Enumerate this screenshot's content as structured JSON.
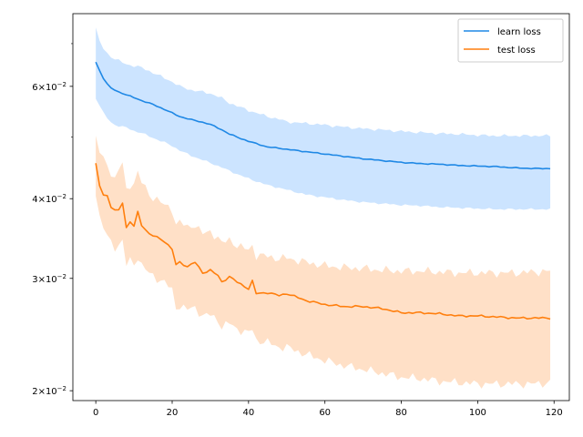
{
  "chart_data": {
    "type": "line",
    "title": "",
    "xlabel": "",
    "ylabel": "",
    "y_scale": "log",
    "xlim": [
      -6,
      124
    ],
    "ylim": [
      0.0193,
      0.078
    ],
    "grid": false,
    "legend_position": "top-right",
    "x_ticks": [
      0,
      20,
      40,
      60,
      80,
      100,
      120
    ],
    "x_tick_labels": [
      "0",
      "20",
      "40",
      "60",
      "80",
      "100",
      "120"
    ],
    "y_ticks": [
      0.02,
      0.03,
      0.04,
      0.06
    ],
    "y_tick_bases": [
      "2",
      "3",
      "4",
      "6"
    ],
    "y_tick_times": "×10",
    "y_tick_exponent": "−2",
    "y_minor_ticks": [
      0.05,
      0.07
    ],
    "series": [
      {
        "name": "learn loss",
        "color": "#1f88e5",
        "band_color": "#cce4ff",
        "keypoints": {
          "x": [
            0,
            1,
            2,
            3,
            4,
            5,
            6,
            8,
            10,
            12,
            15,
            18,
            20,
            22,
            25,
            28,
            30,
            33,
            35,
            38,
            40,
            43,
            45,
            48,
            50,
            55,
            60,
            65,
            70,
            75,
            80,
            85,
            90,
            95,
            100,
            105,
            110,
            115,
            119
          ],
          "mean": [
            0.0655,
            0.0635,
            0.0618,
            0.0605,
            0.0596,
            0.0592,
            0.0588,
            0.0582,
            0.0576,
            0.057,
            0.0562,
            0.0552,
            0.0545,
            0.0538,
            0.0532,
            0.0527,
            0.0523,
            0.0513,
            0.0505,
            0.0497,
            0.0492,
            0.0486,
            0.0482,
            0.048,
            0.0478,
            0.0474,
            0.047,
            0.0466,
            0.0462,
            0.0459,
            0.0456,
            0.0454,
            0.0453,
            0.0451,
            0.045,
            0.0449,
            0.0447,
            0.0446,
            0.0446
          ],
          "upper": [
            0.074,
            0.0705,
            0.0688,
            0.0676,
            0.0668,
            0.0662,
            0.0658,
            0.065,
            0.0646,
            0.0642,
            0.063,
            0.0618,
            0.061,
            0.06,
            0.0592,
            0.0588,
            0.0585,
            0.0575,
            0.0565,
            0.0556,
            0.055,
            0.0543,
            0.0538,
            0.0533,
            0.0528,
            0.0525,
            0.0522,
            0.0518,
            0.0515,
            0.0513,
            0.051,
            0.0508,
            0.0506,
            0.0505,
            0.0503,
            0.0502,
            0.0502,
            0.0502,
            0.0502
          ],
          "lower": [
            0.0575,
            0.056,
            0.0545,
            0.0535,
            0.0527,
            0.0522,
            0.052,
            0.0517,
            0.0511,
            0.0507,
            0.0498,
            0.049,
            0.0484,
            0.0476,
            0.0467,
            0.046,
            0.0455,
            0.0448,
            0.0442,
            0.0435,
            0.043,
            0.0424,
            0.042,
            0.0416,
            0.0413,
            0.0406,
            0.0402,
            0.0398,
            0.0395,
            0.0393,
            0.0391,
            0.039,
            0.0388,
            0.0387,
            0.0386,
            0.0385,
            0.0385,
            0.0385,
            0.0385
          ]
        }
      },
      {
        "name": "test loss",
        "color": "#ff7f0e",
        "band_color": "#ffe0c7",
        "keypoints": {
          "x": [
            0,
            1,
            2,
            3,
            4,
            5,
            6,
            7,
            8,
            9,
            10,
            11,
            12,
            14,
            16,
            18,
            20,
            21,
            22,
            24,
            26,
            28,
            30,
            32,
            33,
            35,
            37,
            40,
            41,
            42,
            45,
            48,
            50,
            55,
            60,
            65,
            70,
            75,
            80,
            85,
            90,
            95,
            100,
            105,
            110,
            115,
            119
          ],
          "mean": [
            0.0453,
            0.042,
            0.0406,
            0.0404,
            0.0388,
            0.0383,
            0.0384,
            0.0395,
            0.036,
            0.0368,
            0.0362,
            0.0381,
            0.0364,
            0.0352,
            0.0348,
            0.0343,
            0.0333,
            0.0315,
            0.0318,
            0.0313,
            0.0318,
            0.0306,
            0.0309,
            0.0303,
            0.0296,
            0.0302,
            0.0296,
            0.0289,
            0.0297,
            0.0284,
            0.0285,
            0.0282,
            0.0284,
            0.0277,
            0.0273,
            0.0271,
            0.0271,
            0.0269,
            0.0265,
            0.0265,
            0.0264,
            0.0262,
            0.0262,
            0.0261,
            0.026,
            0.026,
            0.026
          ],
          "upper": [
            0.05,
            0.0475,
            0.046,
            0.045,
            0.044,
            0.043,
            0.0445,
            0.0455,
            0.041,
            0.042,
            0.0425,
            0.044,
            0.0425,
            0.0405,
            0.04,
            0.039,
            0.0385,
            0.0365,
            0.0368,
            0.036,
            0.0365,
            0.0352,
            0.0355,
            0.0348,
            0.034,
            0.0345,
            0.0338,
            0.0332,
            0.0338,
            0.0326,
            0.0325,
            0.0322,
            0.0323,
            0.0318,
            0.0314,
            0.0312,
            0.0311,
            0.0309,
            0.0308,
            0.0308,
            0.0307,
            0.0306,
            0.0306,
            0.0306,
            0.0306,
            0.0307,
            0.0308
          ],
          "lower": [
            0.041,
            0.0375,
            0.036,
            0.035,
            0.034,
            0.0335,
            0.034,
            0.0343,
            0.0315,
            0.032,
            0.0315,
            0.0325,
            0.0315,
            0.0305,
            0.03,
            0.0296,
            0.0287,
            0.027,
            0.0272,
            0.0268,
            0.027,
            0.0262,
            0.0263,
            0.0258,
            0.0252,
            0.0255,
            0.025,
            0.0246,
            0.025,
            0.024,
            0.0238,
            0.0234,
            0.0234,
            0.0228,
            0.0223,
            0.0219,
            0.0216,
            0.0213,
            0.021,
            0.0209,
            0.0207,
            0.0206,
            0.0205,
            0.0205,
            0.0205,
            0.0205,
            0.0206
          ]
        }
      }
    ]
  }
}
